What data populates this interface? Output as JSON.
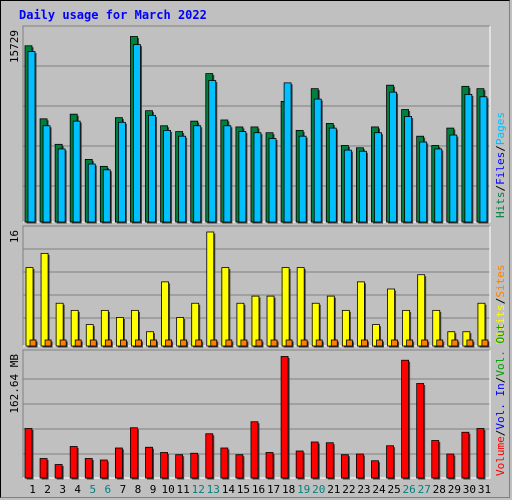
{
  "title": "Daily usage for March 2022",
  "colors": {
    "background": "#c0c0c0",
    "plot": "#c0c0c0",
    "grid": "#808080",
    "hits": "#008040",
    "files": "#00c0ff",
    "pages": "#00c0ff",
    "visits": "#ffff00",
    "sites": "#ff8000",
    "vol_in": "#0000ff",
    "vol_out": "#00a000",
    "volume": "#ff0000",
    "title": "#0000ff",
    "weekend_label": "#008080"
  },
  "chart_data": [
    {
      "type": "bar",
      "panel": "hits-files-pages",
      "ytick": "15729",
      "ymax": 15729,
      "legend": [
        "Hits",
        "/",
        "Files",
        "/",
        "Pages"
      ],
      "legend_colors": [
        "#008040",
        "#000000",
        "#0000ff",
        "#000000",
        "#00c0ff"
      ],
      "series": [
        {
          "name": "Hits",
          "values": [
            15200,
            8900,
            6700,
            9300,
            5400,
            4800,
            9000,
            16000,
            9600,
            8300,
            7800,
            8700,
            12800,
            8800,
            8200,
            8200,
            7700,
            10400,
            7900,
            11500,
            8500,
            6600,
            6400,
            8200,
            11800,
            9700,
            7400,
            6600,
            8100,
            11700,
            11500
          ]
        },
        {
          "name": "Files",
          "values": [
            14700,
            8300,
            6300,
            8700,
            5000,
            4500,
            8600,
            15300,
            9200,
            7900,
            7400,
            8300,
            12200,
            8300,
            7800,
            7700,
            7200,
            12000,
            7400,
            10600,
            8100,
            6200,
            6100,
            7700,
            11200,
            9100,
            6900,
            6300,
            7500,
            11000,
            10800
          ]
        },
        {
          "name": "Pages",
          "values": [
            12000,
            7000,
            5200,
            7200,
            4200,
            3900,
            7300,
            12500,
            7800,
            6600,
            6300,
            7000,
            10000,
            6900,
            6500,
            6500,
            6100,
            9700,
            6200,
            8800,
            6800,
            5200,
            5100,
            6500,
            9100,
            7600,
            5800,
            5300,
            6400,
            8900,
            8700
          ]
        }
      ]
    },
    {
      "type": "bar",
      "panel": "visits-sites",
      "ytick": "16",
      "ymax": 16,
      "legend": [
        "Visits",
        "/",
        "Sites"
      ],
      "legend_colors": [
        "#ffff00",
        "#000000",
        "#ff8000"
      ],
      "series": [
        {
          "name": "Visits",
          "values": [
            11,
            13,
            6,
            5,
            3,
            5,
            4,
            5,
            2,
            9,
            4,
            6,
            16,
            11,
            6,
            7,
            7,
            11,
            11,
            6,
            7,
            5,
            9,
            3,
            8,
            5,
            10,
            5,
            2,
            2,
            6
          ]
        },
        {
          "name": "Sites",
          "values": [
            1,
            1,
            1,
            1,
            1,
            1,
            1,
            1,
            1,
            1,
            1,
            1,
            1,
            1,
            1,
            1,
            1,
            1,
            1,
            1,
            1,
            1,
            1,
            1,
            1,
            1,
            1,
            1,
            1,
            1,
            1
          ]
        }
      ]
    },
    {
      "type": "bar",
      "panel": "volume",
      "ytick": "162.64 MB",
      "ymax": 162.64,
      "legend": [
        "Volume",
        "/",
        "Vol. In",
        "/",
        "Vol. Out"
      ],
      "legend_colors": [
        "#ff0000",
        "#000000",
        "#0000ff",
        "#000000",
        "#00a000"
      ],
      "series": [
        {
          "name": "Volume",
          "values": [
            66,
            26,
            18,
            42,
            26,
            24,
            40,
            67,
            41,
            34,
            31,
            33,
            59,
            40,
            31,
            75,
            34,
            162,
            36,
            48,
            47,
            31,
            32,
            23,
            43,
            157,
            126,
            50,
            32,
            61,
            66
          ]
        }
      ]
    }
  ],
  "days": [
    "1",
    "2",
    "3",
    "4",
    "5",
    "6",
    "7",
    "8",
    "9",
    "10",
    "11",
    "12",
    "13",
    "14",
    "15",
    "16",
    "17",
    "18",
    "19",
    "20",
    "21",
    "22",
    "23",
    "24",
    "25",
    "26",
    "27",
    "28",
    "29",
    "30",
    "31"
  ],
  "weekend_days": [
    "5",
    "6",
    "12",
    "13",
    "19",
    "20",
    "26",
    "27"
  ]
}
